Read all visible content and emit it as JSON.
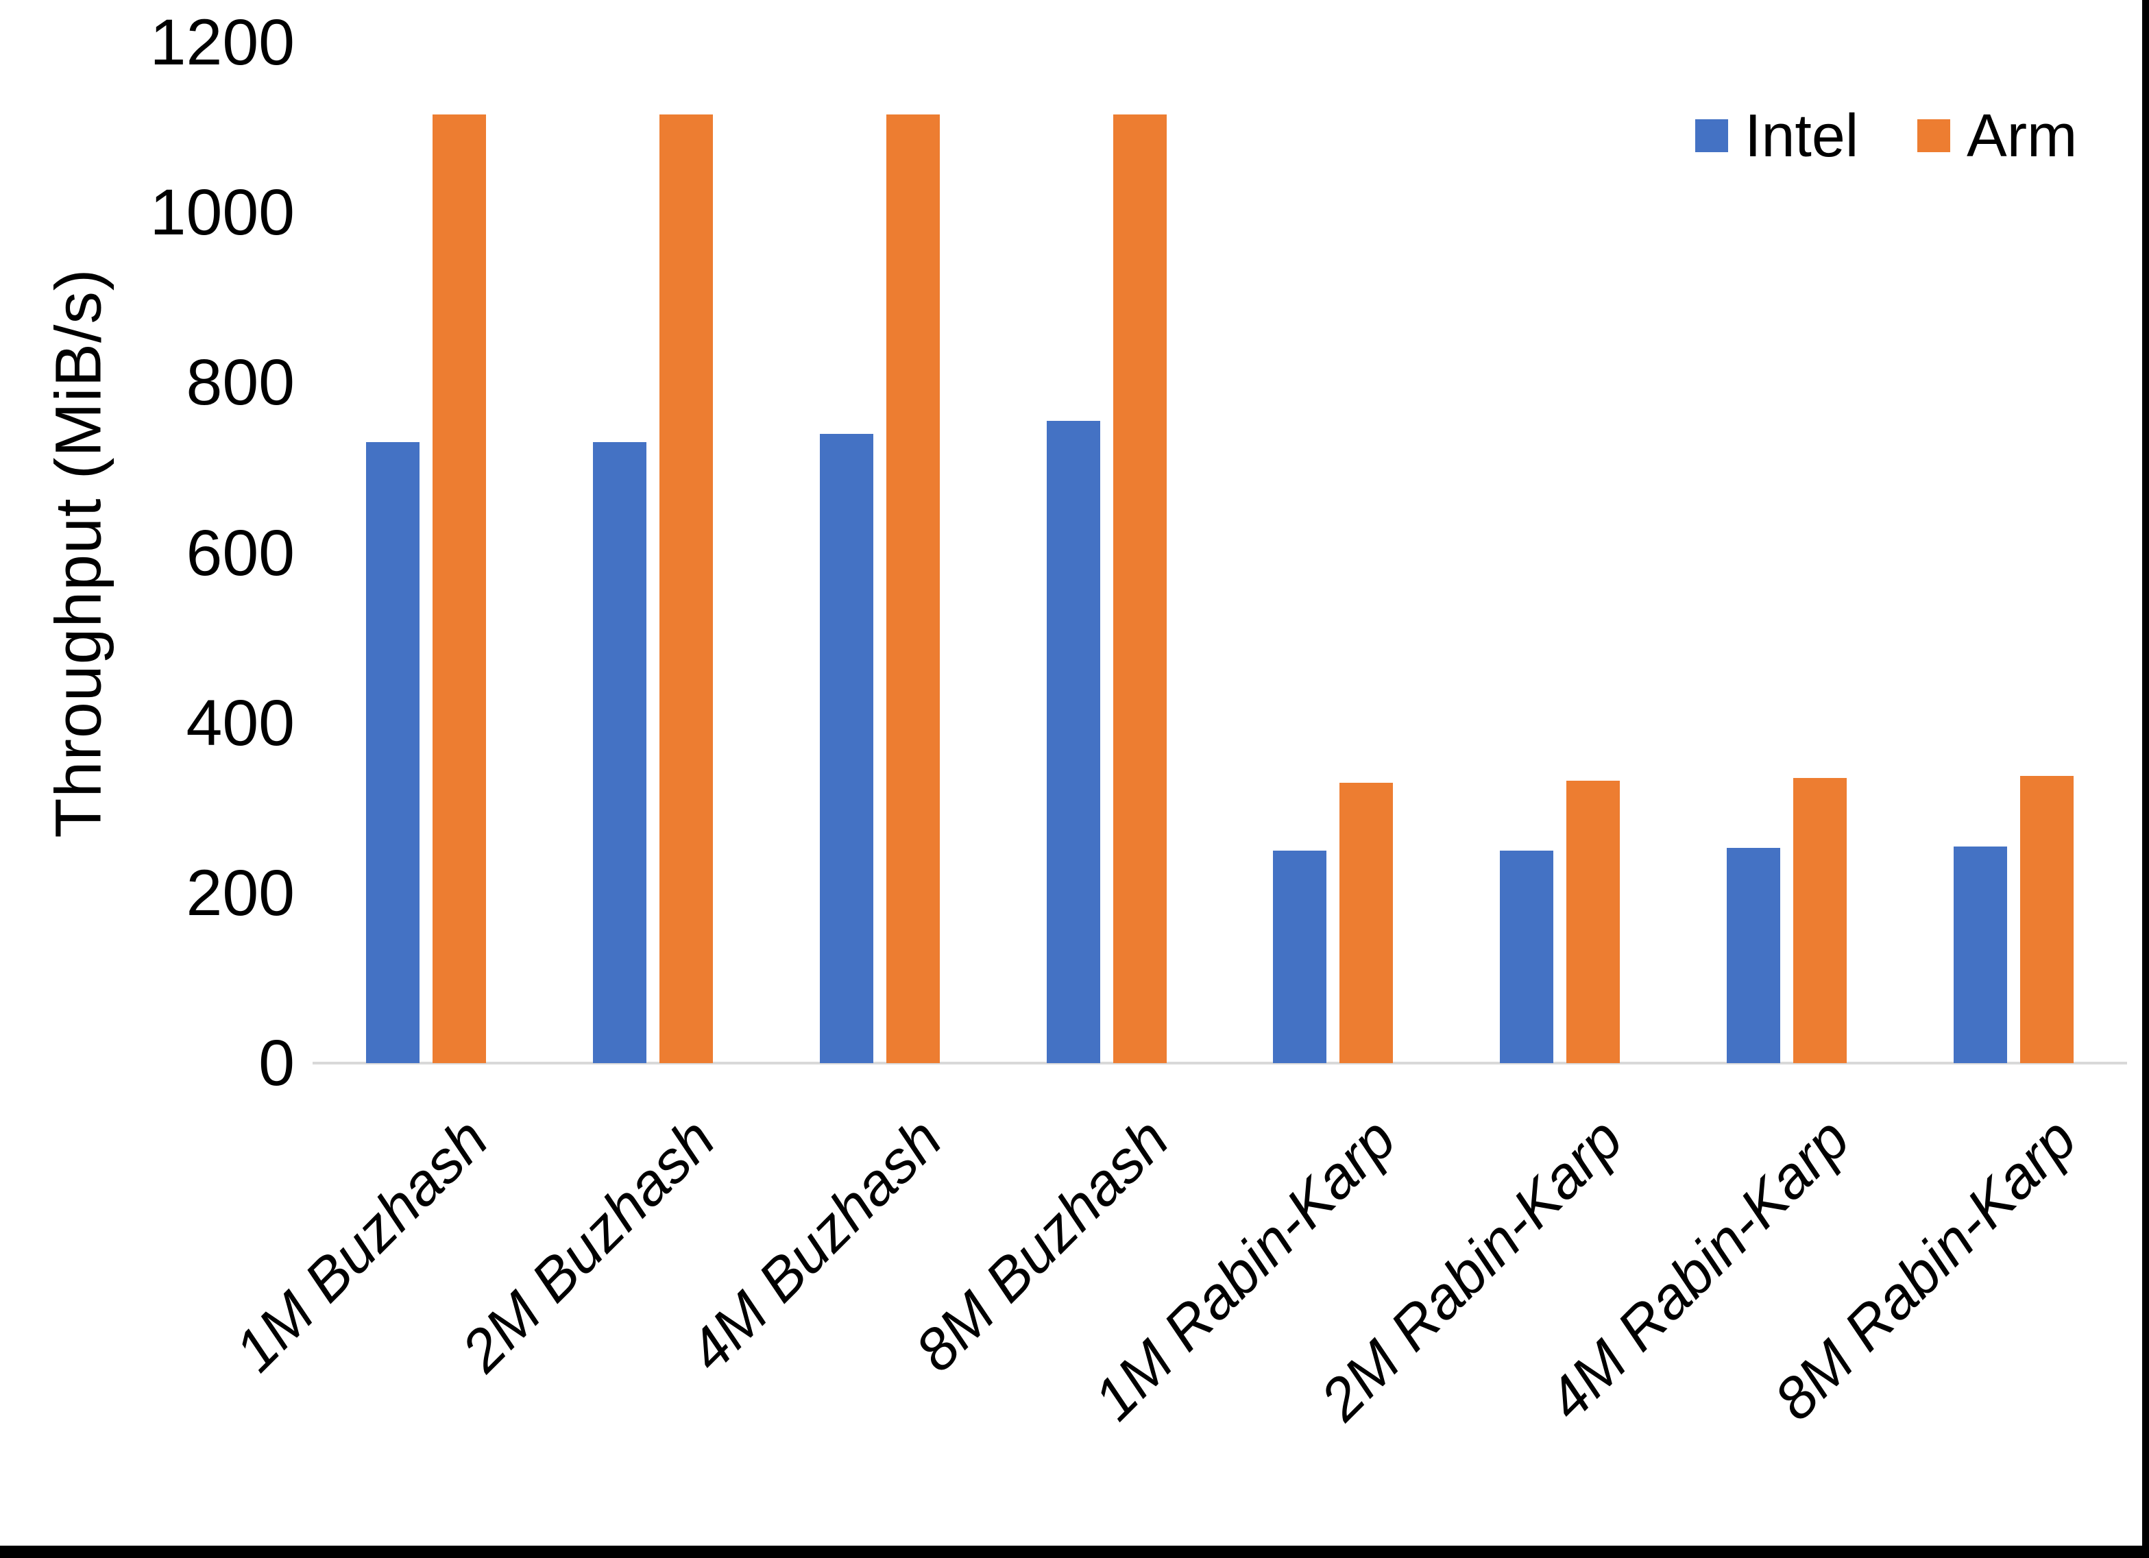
{
  "chart_data": {
    "type": "bar",
    "title": "",
    "ylabel": "Throughput (MiB/s)",
    "xlabel": "",
    "ylim": [
      0,
      1200
    ],
    "yticks": [
      0,
      200,
      400,
      600,
      800,
      1000,
      1200
    ],
    "grid": false,
    "legend_position": "top-right",
    "categories": [
      "1M Buzhash",
      "2M Buzhash",
      "4M Buzhash",
      "8M Buzhash",
      "1M Rabin-Karp",
      "2M Rabin-Karp",
      "4M Rabin-Karp",
      "8M Rabin-Karp"
    ],
    "series": [
      {
        "name": "Intel",
        "color": "#4472C4",
        "values": [
          730,
          730,
          740,
          755,
          250,
          250,
          253,
          255
        ]
      },
      {
        "name": "Arm",
        "color": "#ED7D31",
        "values": [
          1115,
          1115,
          1115,
          1115,
          330,
          332,
          335,
          338
        ]
      }
    ],
    "axis_line_color": "#D9D9D9",
    "text_color": "#000000",
    "background": "#FFFFFF",
    "window_edge_color": "#000000"
  }
}
